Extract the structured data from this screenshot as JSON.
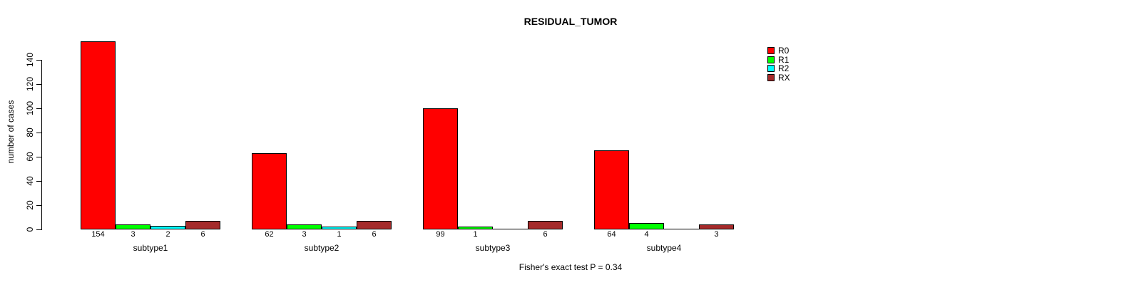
{
  "chart_data": {
    "type": "bar",
    "title": "RESIDUAL_TUMOR",
    "ylabel": "number of cases",
    "ylim": [
      0,
      140
    ],
    "yticks": [
      0,
      20,
      40,
      60,
      80,
      100,
      120,
      140
    ],
    "grid": false,
    "legend_position": "upper-right-of-plot",
    "bar_value_labels_shown": true,
    "categories": [
      "subtype1",
      "subtype2",
      "subtype3",
      "subtype4"
    ],
    "series": [
      {
        "name": "R0",
        "color": "#FF0000",
        "values": [
          154,
          62,
          99,
          64
        ]
      },
      {
        "name": "R1",
        "color": "#00FF00",
        "values": [
          3,
          3,
          1,
          4
        ]
      },
      {
        "name": "R2",
        "color": "#00FFFF",
        "values": [
          2,
          1,
          0,
          0
        ]
      },
      {
        "name": "RX",
        "color": "#A52A2A",
        "values": [
          6,
          6,
          6,
          3
        ]
      }
    ],
    "annotation": "Fisher's exact test P = 0.34"
  },
  "colors": {
    "background": "#FFFFFF",
    "axis": "#000000",
    "text": "#000000"
  }
}
